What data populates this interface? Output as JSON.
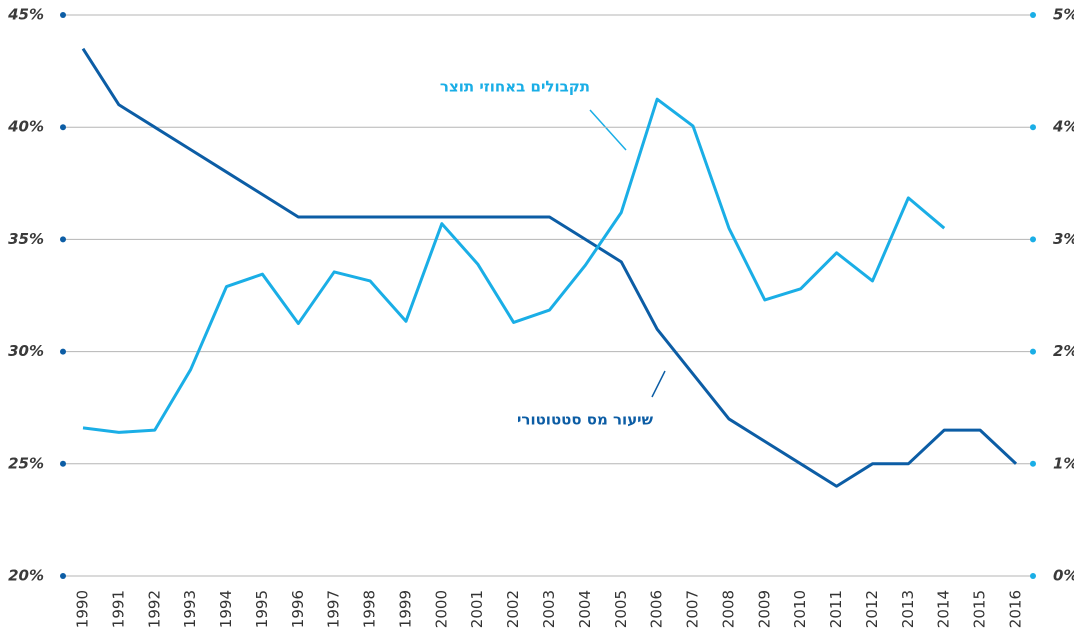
{
  "chart_data": {
    "type": "line",
    "categories": [
      "1990",
      "1991",
      "1992",
      "1993",
      "1994",
      "1995",
      "1996",
      "1997",
      "1998",
      "1999",
      "2000",
      "2001",
      "2002",
      "2003",
      "2004",
      "2005",
      "2006",
      "2007",
      "2008",
      "2009",
      "2010",
      "2011",
      "2012",
      "2013",
      "2014",
      "2015",
      "2016"
    ],
    "series": [
      {
        "name": "שיעור מס סטטוטורי",
        "color": "#0c5da5",
        "axis": "y",
        "values": [
          43.5,
          41,
          40,
          39,
          38,
          37,
          36,
          36,
          36,
          36,
          36,
          36,
          36,
          36,
          35,
          34,
          31,
          29,
          27,
          26,
          25,
          24,
          25,
          25,
          26.5,
          26.5,
          25
        ]
      },
      {
        "name": "תקבולים באחוזי תוצר",
        "color": "#1aaee6",
        "axis": "y2",
        "values": [
          1.32,
          1.28,
          1.3,
          1.84,
          2.58,
          2.69,
          2.25,
          2.71,
          2.63,
          2.27,
          3.14,
          2.78,
          2.26,
          2.37,
          2.77,
          3.24,
          4.25,
          4.01,
          3.1,
          2.46,
          2.56,
          2.88,
          2.63,
          3.37,
          3.1,
          null,
          null
        ]
      }
    ],
    "ylim": [
      20,
      45
    ],
    "yticks": [
      {
        "value": 20,
        "label": "20%"
      },
      {
        "value": 25,
        "label": "25%"
      },
      {
        "value": 30,
        "label": "30%"
      },
      {
        "value": 35,
        "label": "35%"
      },
      {
        "value": 40,
        "label": "40%"
      },
      {
        "value": 45,
        "label": "45%"
      }
    ],
    "y2lim": [
      0,
      5
    ],
    "y2ticks": [
      {
        "value": 0,
        "label": "0%"
      },
      {
        "value": 1,
        "label": "1%"
      },
      {
        "value": 2,
        "label": "2%"
      },
      {
        "value": 3,
        "label": "3%"
      },
      {
        "value": 4,
        "label": "4%"
      },
      {
        "value": 5,
        "label": "5%"
      }
    ],
    "grid": true
  }
}
